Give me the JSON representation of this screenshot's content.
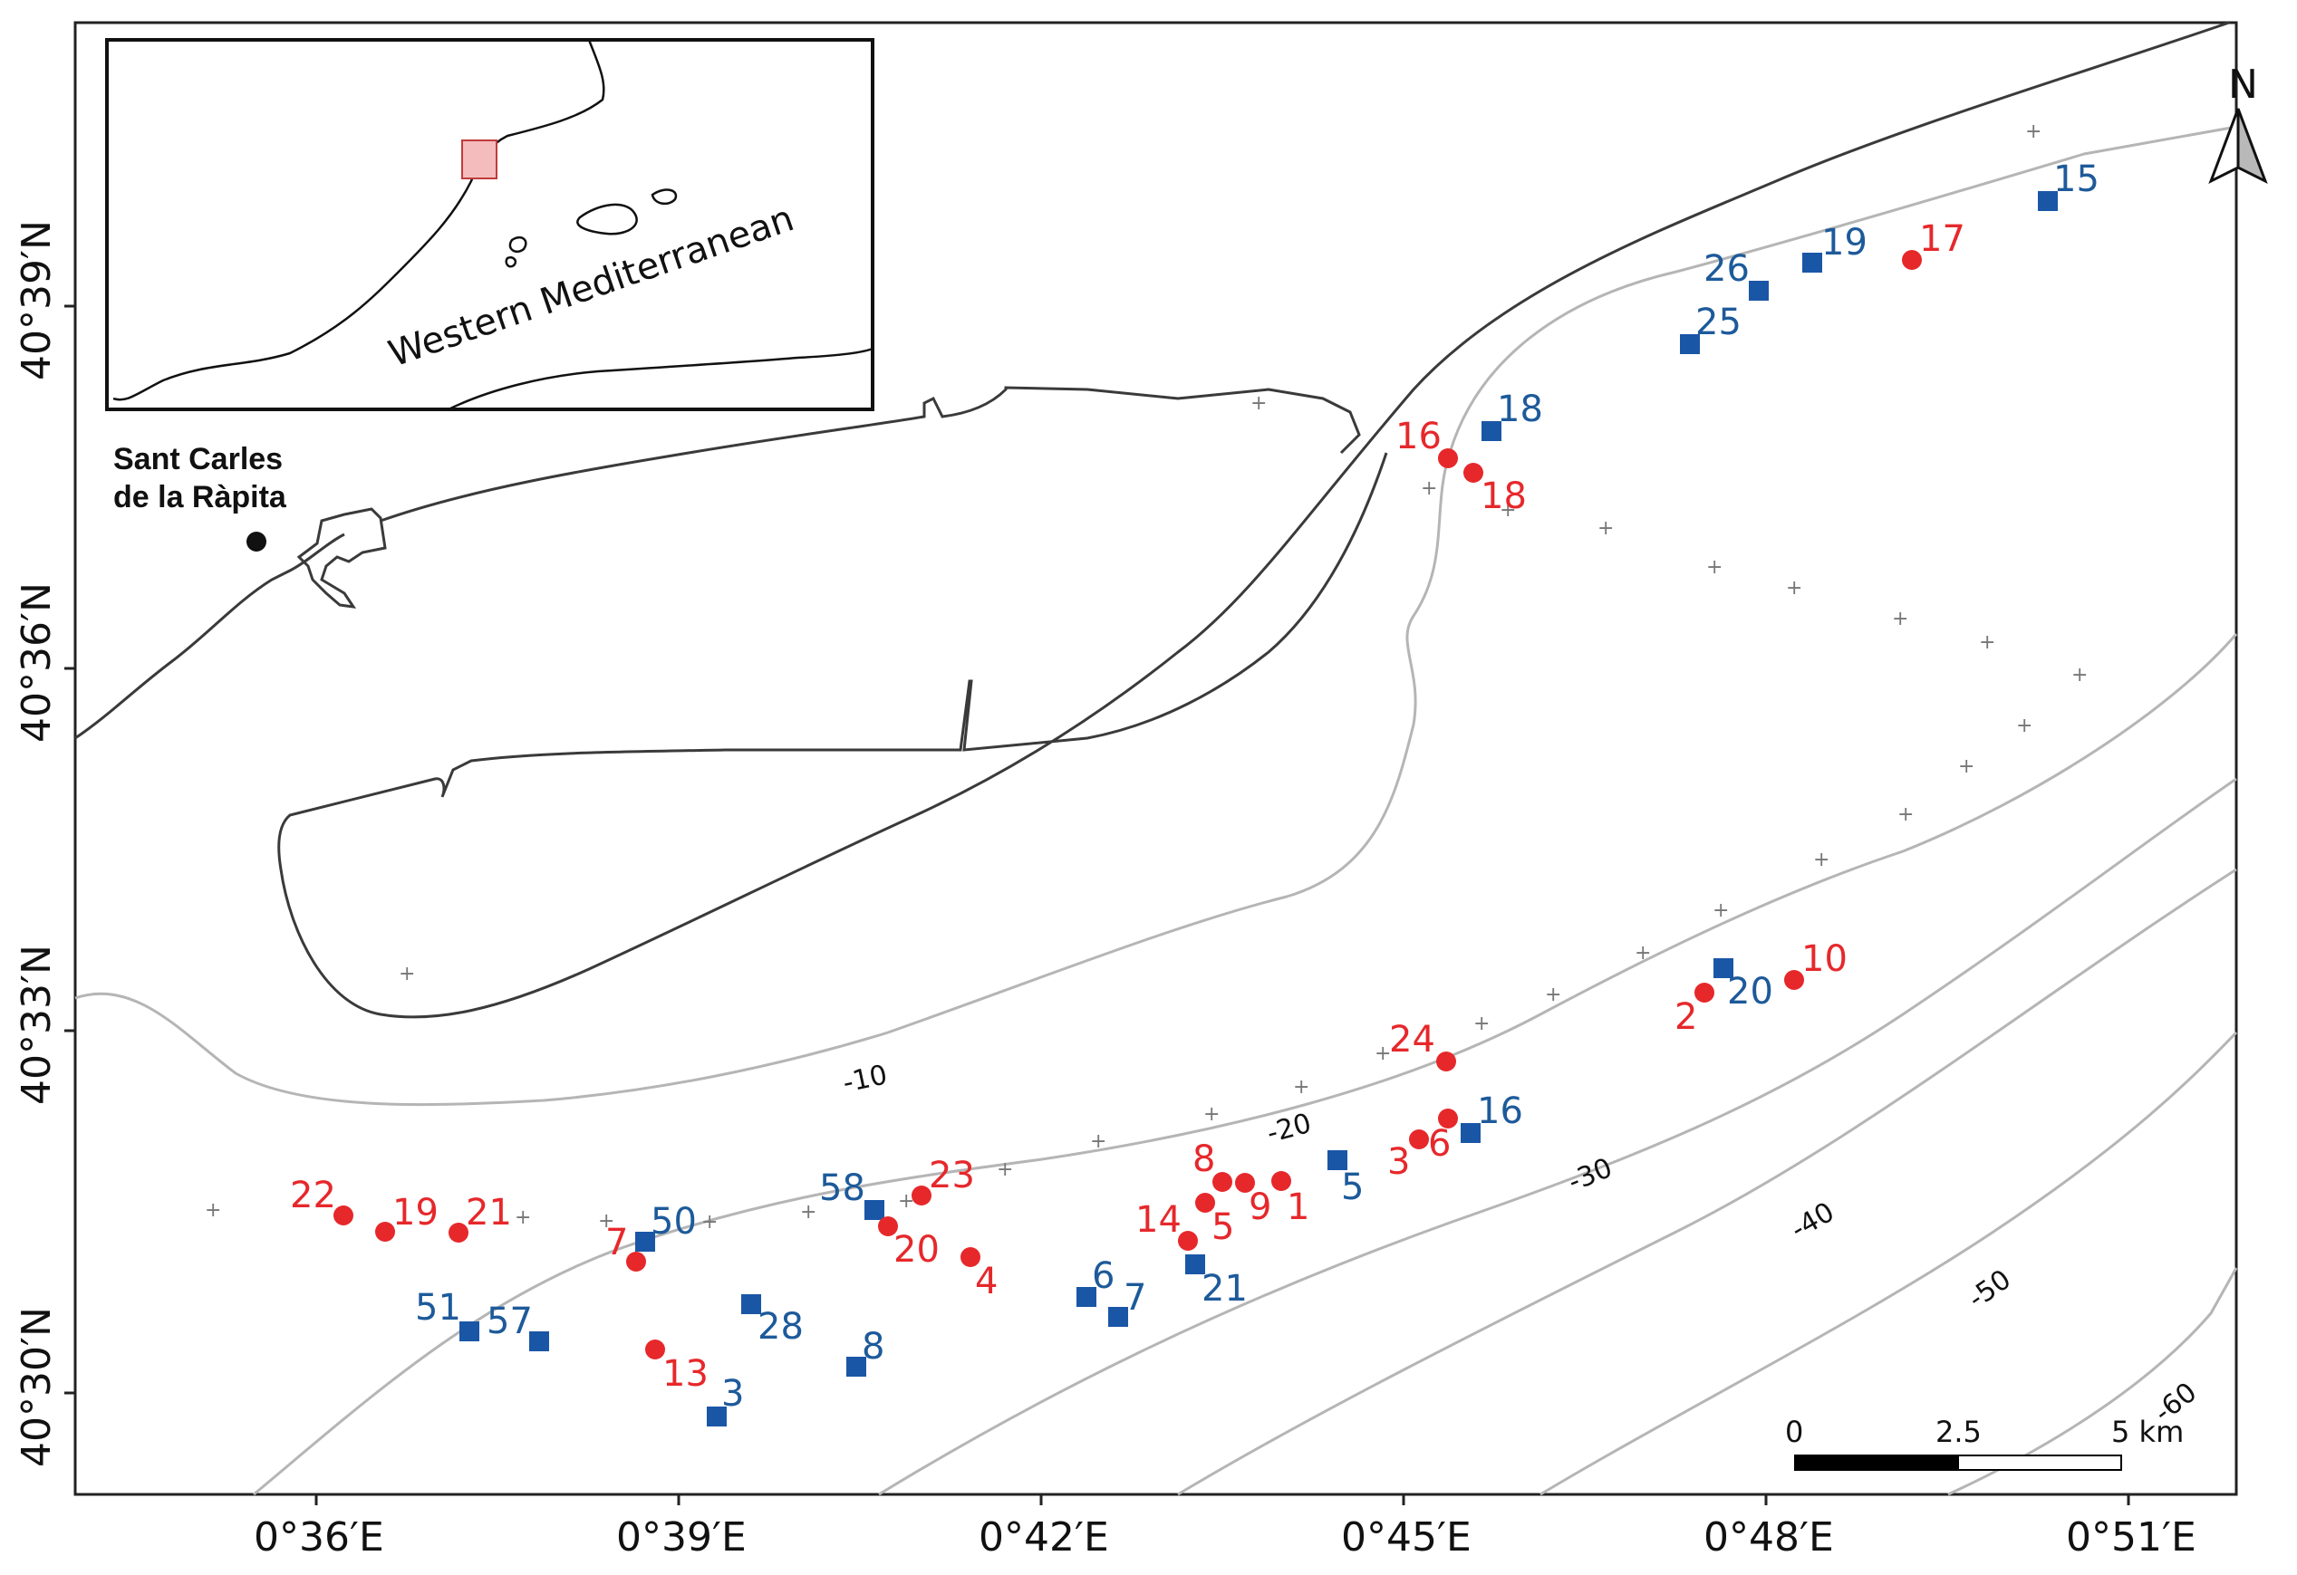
{
  "map": {
    "lon_labels": [
      "0°36′E",
      "0°39′E",
      "0°42′E",
      "0°45′E",
      "0°48′E",
      "0°51′E"
    ],
    "lat_labels": [
      "40°39′N",
      "40°36′N",
      "40°33′N",
      "40°30′N"
    ],
    "contours": [
      "-10",
      "-20",
      "-30",
      "-40",
      "-50",
      "-60"
    ],
    "town": {
      "line1": "Sant Carles",
      "line2": "de la Ràpita"
    },
    "inset": {
      "region_label": "Western Mediterranean"
    },
    "north_arrow": {
      "label": "N"
    },
    "scale_bar": {
      "ticks": [
        "0",
        "2.5",
        "5 km"
      ]
    },
    "colors": {
      "red_station": "#e6282b",
      "blue_station": "#1a56a6",
      "coast": "#3a3a3a",
      "contour": "#b5b5b5"
    },
    "red_stations": [
      "22",
      "19",
      "21",
      "7",
      "13",
      "20",
      "23",
      "4",
      "14",
      "5",
      "8",
      "9",
      "1",
      "3",
      "6",
      "24",
      "16",
      "18",
      "2",
      "10",
      "17"
    ],
    "blue_stations": [
      "51",
      "57",
      "50",
      "28",
      "3",
      "58",
      "8",
      "6",
      "7",
      "21",
      "5",
      "16",
      "20",
      "18",
      "25",
      "26",
      "19",
      "15"
    ]
  }
}
